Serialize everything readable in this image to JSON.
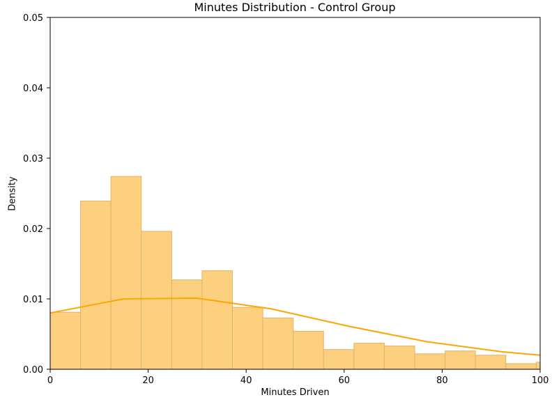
{
  "chart_data": {
    "type": "bar",
    "title": "Minutes Distribution - Control Group",
    "xlabel": "Minutes Driven",
    "ylabel": "Density",
    "xlim": [
      0,
      100
    ],
    "ylim": [
      0,
      0.05
    ],
    "xticks": [
      0,
      20,
      40,
      60,
      80,
      100
    ],
    "xtick_labels": [
      "0",
      "20",
      "40",
      "60",
      "80",
      "100"
    ],
    "yticks": [
      0,
      0.01,
      0.02,
      0.03,
      0.04,
      0.05
    ],
    "ytick_labels": [
      "0.00",
      "0.01",
      "0.02",
      "0.03",
      "0.04",
      "0.05"
    ],
    "grid": false,
    "bins": [
      {
        "x0": 0.0,
        "x1": 6.2,
        "value": 0.0081
      },
      {
        "x0": 6.2,
        "x1": 12.4,
        "value": 0.0239
      },
      {
        "x0": 12.4,
        "x1": 18.6,
        "value": 0.0274
      },
      {
        "x0": 18.6,
        "x1": 24.8,
        "value": 0.0196
      },
      {
        "x0": 24.8,
        "x1": 31.0,
        "value": 0.0127
      },
      {
        "x0": 31.0,
        "x1": 37.2,
        "value": 0.014
      },
      {
        "x0": 37.2,
        "x1": 43.4,
        "value": 0.0088
      },
      {
        "x0": 43.4,
        "x1": 49.6,
        "value": 0.0073
      },
      {
        "x0": 49.6,
        "x1": 55.8,
        "value": 0.0054
      },
      {
        "x0": 55.8,
        "x1": 62.0,
        "value": 0.0028
      },
      {
        "x0": 62.0,
        "x1": 68.2,
        "value": 0.0037
      },
      {
        "x0": 68.2,
        "x1": 74.4,
        "value": 0.0033
      },
      {
        "x0": 74.4,
        "x1": 80.6,
        "value": 0.0022
      },
      {
        "x0": 80.6,
        "x1": 86.8,
        "value": 0.0026
      },
      {
        "x0": 86.8,
        "x1": 93.0,
        "value": 0.002
      },
      {
        "x0": 93.0,
        "x1": 99.2,
        "value": 0.0008
      },
      {
        "x0": 99.2,
        "x1": 100.0,
        "value": 0.001
      }
    ],
    "kde": {
      "x": [
        0,
        15,
        30,
        45,
        61,
        77,
        92,
        100
      ],
      "y": [
        0.008,
        0.01,
        0.0101,
        0.0086,
        0.0061,
        0.0039,
        0.0025,
        0.002
      ]
    },
    "colors": {
      "bar_fill": "#fdd07f",
      "bar_edge": "#e0b466",
      "kde_line": "#ffa500",
      "axis": "#000000"
    }
  }
}
